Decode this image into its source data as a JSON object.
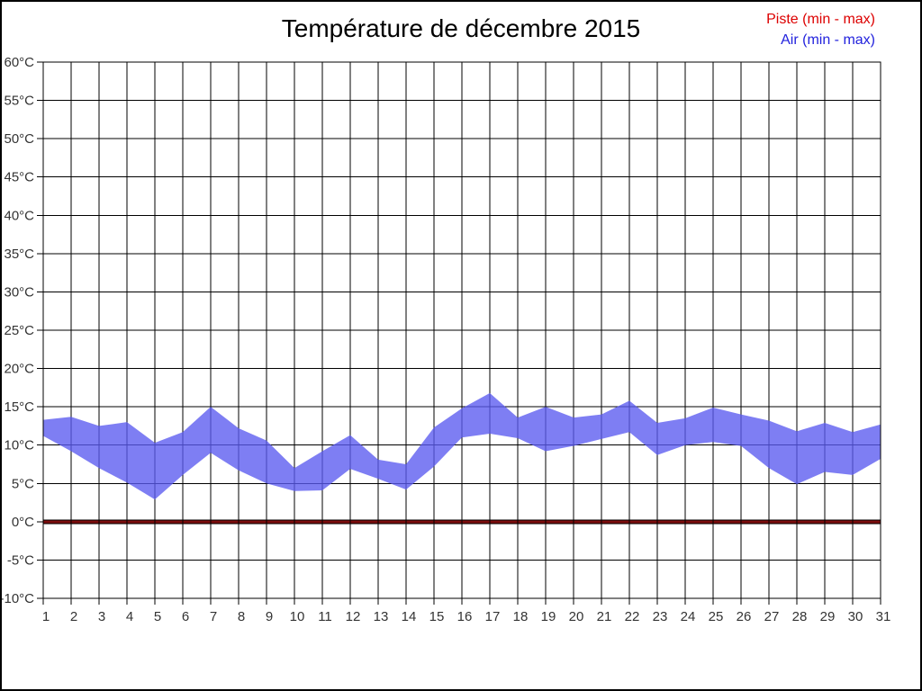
{
  "title": "Température de décembre 2015",
  "legend": {
    "piste_label": "Piste (min - max)",
    "air_label": "Air (min - max)",
    "piste_color": "#dd0000",
    "air_color": "#2222dd"
  },
  "chart_data": {
    "type": "area",
    "title": "Température de décembre 2015",
    "xlabel": "",
    "ylabel": "°C",
    "ylim": [
      -10,
      60
    ],
    "y_tick_step": 5,
    "grid": true,
    "legend_position": "top-right",
    "x": [
      1,
      2,
      3,
      4,
      5,
      6,
      7,
      8,
      9,
      10,
      11,
      12,
      13,
      14,
      15,
      16,
      17,
      18,
      19,
      20,
      21,
      22,
      23,
      24,
      25,
      26,
      27,
      28,
      29,
      30,
      31
    ],
    "x_tick_labels": [
      "1",
      "2",
      "3",
      "4",
      "5",
      "6",
      "7",
      "8",
      "9",
      "10",
      "11",
      "12",
      "13",
      "14",
      "15",
      "16",
      "17",
      "18",
      "19",
      "20",
      "21",
      "22",
      "23",
      "24",
      "25",
      "26",
      "27",
      "28",
      "29",
      "30",
      "31"
    ],
    "y_tick_labels": [
      "60°C",
      "55°C",
      "50°C",
      "45°C",
      "40°C",
      "35°C",
      "30°C",
      "25°C",
      "20°C",
      "15°C",
      "10°C",
      "5°C",
      "0°C",
      "-5°C",
      "-10°C"
    ],
    "series": [
      {
        "name": "Piste (min - max)",
        "min": [
          0,
          0,
          0,
          0,
          0,
          0,
          0,
          0,
          0,
          0,
          0,
          0,
          0,
          0,
          0,
          0,
          0,
          0,
          0,
          0,
          0,
          0,
          0,
          0,
          0,
          0,
          0,
          0,
          0,
          0,
          0
        ],
        "max": [
          0,
          0,
          0,
          0,
          0,
          0,
          0,
          0,
          0,
          0,
          0,
          0,
          0,
          0,
          0,
          0,
          0,
          0,
          0,
          0,
          0,
          0,
          0,
          0,
          0,
          0,
          0,
          0,
          0,
          0,
          0
        ],
        "line_color": "#7b0d0d",
        "edge_color": "#000000"
      },
      {
        "name": "Air (min - max)",
        "min": [
          11.2,
          9.2,
          7.0,
          5.1,
          2.9,
          6.1,
          9.0,
          6.7,
          5.0,
          4.0,
          4.1,
          6.9,
          5.6,
          4.2,
          7.2,
          11.0,
          11.5,
          10.9,
          9.2,
          9.9,
          10.8,
          11.7,
          8.7,
          10.0,
          10.4,
          9.9,
          7.0,
          4.9,
          6.5,
          6.1,
          8.2
        ],
        "max": [
          13.3,
          13.7,
          12.5,
          13.0,
          10.3,
          11.7,
          15.0,
          12.2,
          10.6,
          7.0,
          9.2,
          11.3,
          8.1,
          7.5,
          12.3,
          14.8,
          16.8,
          13.6,
          15.0,
          13.6,
          14.0,
          15.8,
          12.9,
          13.5,
          14.9,
          14.0,
          13.2,
          11.8,
          12.9,
          11.7,
          12.7
        ],
        "band_fill": "#5a5af0",
        "band_opacity": 0.78,
        "apparent_fill": "#8080f0"
      }
    ],
    "grid_color": "#000000",
    "tick_label_color": "#333333"
  }
}
